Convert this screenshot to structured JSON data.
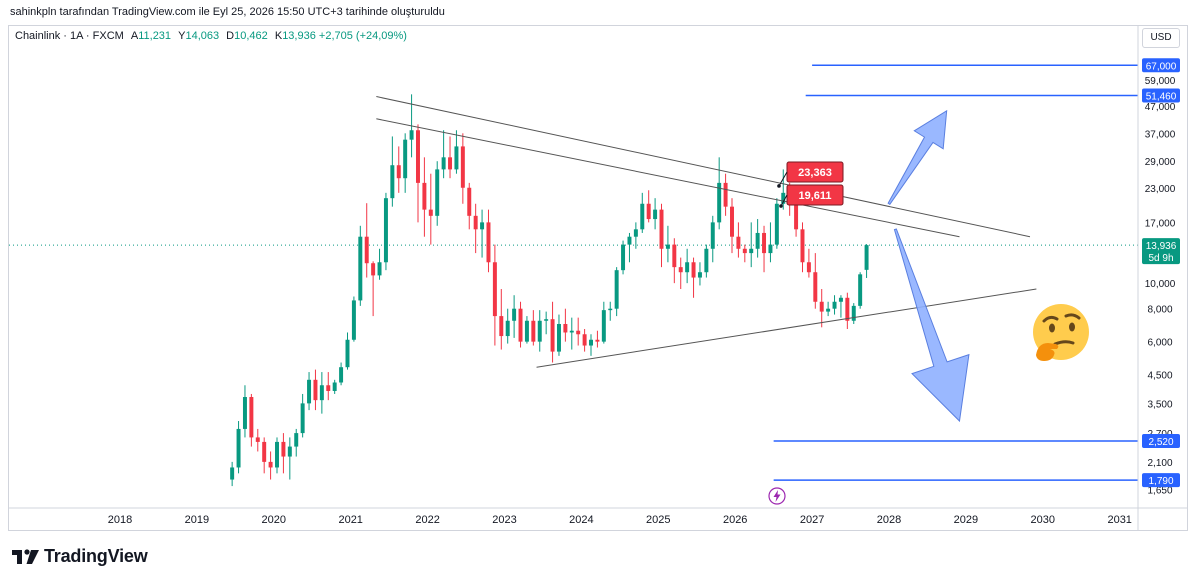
{
  "header": {
    "attribution": "sahinkpln tarafından TradingView.com ile Eyl 25, 2026 15:50 UTC+3 tarihinde oluşturuldu"
  },
  "legend": {
    "symbol": "Chainlink · 1A · FXCM",
    "open_key": "A",
    "open": "11,231",
    "high_key": "Y",
    "high": "14,063",
    "low_key": "D",
    "low": "10,462",
    "close_key": "K",
    "close": "13,936",
    "change": "+2,705 (+24,09%)"
  },
  "currency": "USD",
  "footer": {
    "brand": "TradingView"
  },
  "colors": {
    "up": "#089981",
    "down": "#f23645",
    "level_line": "#2962ff",
    "arrow_fill": "#8fb0ff",
    "arrow_stroke": "#5a7fe0",
    "trendline": "#555555",
    "callout": "#f23645"
  },
  "chart_data": {
    "type": "candlestick",
    "title": "",
    "xlabel": "",
    "ylabel": "",
    "y_scale": "log",
    "ylim": [
      1.6,
      73
    ],
    "x_tick_labels": [
      "2018",
      "2019",
      "2020",
      "2021",
      "2022",
      "2023",
      "2024",
      "2025",
      "2026",
      "2027",
      "2028",
      "2029",
      "2030",
      "2031"
    ],
    "y_tick_labels": [
      "59,000",
      "47,000",
      "37,000",
      "29,000",
      "23,000",
      "17,000",
      "10,000",
      "8,000",
      "6,000",
      "4,500",
      "3,500",
      "2,700",
      "2,100",
      "1,650"
    ],
    "y_tick_values": [
      59,
      47,
      37,
      29,
      23,
      17,
      10,
      8,
      6,
      4.5,
      3.5,
      2.7,
      2.1,
      1.65
    ],
    "price_levels": [
      {
        "label": "67,000",
        "value": 67,
        "from": "2027-01"
      },
      {
        "label": "51,460",
        "value": 51.46,
        "from": "2026-12"
      },
      {
        "label": "2,520",
        "value": 2.52,
        "from": "2026-07"
      },
      {
        "label": "1,790",
        "value": 1.79,
        "from": "2026-07"
      }
    ],
    "current_price": {
      "label": "13,936",
      "value": 13.936,
      "countdown": "5d 9h"
    },
    "callouts": [
      {
        "label": "23,363",
        "value": 23.363
      },
      {
        "label": "19,611",
        "value": 19.611
      }
    ],
    "trendlines": [
      {
        "from": [
          "2021-05",
          51
        ],
        "to": [
          "2029-11",
          15
        ]
      },
      {
        "from": [
          "2021-05",
          42
        ],
        "to": [
          "2028-12",
          15
        ]
      },
      {
        "from": [
          "2023-06",
          4.8
        ],
        "to": [
          "2029-12",
          9.5
        ]
      }
    ],
    "arrows": [
      {
        "direction": "up",
        "from": [
          "2028-01",
          20
        ],
        "to": [
          "2028-10",
          45
        ]
      },
      {
        "direction": "down",
        "from": [
          "2028-02",
          16
        ],
        "to": [
          "2028-12",
          3.0
        ]
      }
    ],
    "candles": {
      "start": "2019-06",
      "interval": "1 month",
      "ohlc": [
        [
          1.8,
          2.1,
          1.7,
          2.0
        ],
        [
          2.0,
          3.0,
          1.9,
          2.8
        ],
        [
          2.8,
          4.1,
          2.6,
          3.7
        ],
        [
          3.7,
          3.8,
          2.4,
          2.6
        ],
        [
          2.6,
          2.8,
          2.3,
          2.5
        ],
        [
          2.5,
          2.6,
          1.9,
          2.1
        ],
        [
          2.1,
          2.3,
          1.8,
          2.0
        ],
        [
          2.0,
          2.6,
          1.9,
          2.5
        ],
        [
          2.5,
          2.7,
          1.9,
          2.2
        ],
        [
          2.2,
          2.6,
          1.8,
          2.4
        ],
        [
          2.4,
          2.8,
          2.2,
          2.7
        ],
        [
          2.7,
          3.8,
          2.6,
          3.5
        ],
        [
          3.5,
          4.6,
          3.3,
          4.3
        ],
        [
          4.3,
          4.7,
          3.3,
          3.6
        ],
        [
          3.6,
          4.6,
          3.2,
          4.1
        ],
        [
          4.1,
          4.6,
          3.6,
          3.9
        ],
        [
          3.9,
          4.3,
          3.8,
          4.2
        ],
        [
          4.2,
          5.0,
          4.1,
          4.8
        ],
        [
          4.8,
          6.5,
          4.7,
          6.1
        ],
        [
          6.1,
          8.9,
          6.0,
          8.6
        ],
        [
          8.6,
          16.5,
          8.2,
          15.0
        ],
        [
          15.0,
          20.1,
          10.5,
          11.9
        ],
        [
          11.9,
          12.1,
          7.5,
          10.7
        ],
        [
          10.7,
          13.5,
          10.3,
          12.0
        ],
        [
          12.0,
          22.0,
          11.2,
          21.0
        ],
        [
          21.0,
          36.0,
          19.5,
          28.0
        ],
        [
          28.0,
          33.0,
          22.0,
          25.0
        ],
        [
          25.0,
          37.0,
          22.0,
          35.0
        ],
        [
          35.0,
          52.0,
          30.0,
          38.0
        ],
        [
          38.0,
          40.0,
          17.0,
          24.0
        ],
        [
          24.0,
          30.0,
          15.0,
          19.0
        ],
        [
          19.0,
          26.0,
          14.0,
          18.0
        ],
        [
          18.0,
          29.0,
          16.5,
          27.0
        ],
        [
          27.0,
          38.0,
          25.0,
          30.0
        ],
        [
          30.0,
          36.0,
          25.0,
          27.0
        ],
        [
          27.0,
          38.0,
          26.0,
          33.0
        ],
        [
          33.0,
          37.0,
          20.0,
          23.0
        ],
        [
          23.0,
          24.0,
          16.0,
          18.0
        ],
        [
          18.0,
          20.0,
          13.0,
          16.0
        ],
        [
          16.0,
          19.0,
          12.5,
          17.0
        ],
        [
          17.0,
          19.0,
          11.0,
          12.0
        ],
        [
          12.0,
          14.0,
          5.8,
          7.5
        ],
        [
          7.5,
          9.5,
          5.6,
          6.3
        ],
        [
          6.3,
          8.0,
          5.9,
          7.2
        ],
        [
          7.2,
          9.0,
          6.2,
          8.0
        ],
        [
          8.0,
          8.5,
          5.7,
          6.0
        ],
        [
          6.0,
          7.5,
          5.9,
          7.2
        ],
        [
          7.2,
          7.9,
          5.8,
          6.0
        ],
        [
          6.0,
          7.9,
          5.5,
          7.2
        ],
        [
          7.2,
          7.8,
          6.4,
          7.3
        ],
        [
          7.3,
          8.5,
          5.0,
          5.5
        ],
        [
          5.5,
          7.6,
          5.3,
          7.0
        ],
        [
          7.0,
          8.0,
          6.0,
          6.5
        ],
        [
          6.5,
          7.4,
          5.6,
          6.6
        ],
        [
          6.6,
          7.4,
          5.8,
          6.4
        ],
        [
          6.4,
          6.7,
          5.5,
          5.8
        ],
        [
          5.8,
          6.4,
          5.3,
          6.1
        ],
        [
          6.1,
          6.6,
          5.7,
          6.0
        ],
        [
          6.0,
          8.5,
          5.9,
          7.9
        ],
        [
          7.9,
          8.5,
          7.2,
          8.0
        ],
        [
          8.0,
          11.5,
          7.5,
          11.2
        ],
        [
          11.2,
          14.5,
          10.8,
          14.0
        ],
        [
          14.0,
          15.5,
          12.0,
          15.0
        ],
        [
          15.0,
          17.0,
          13.5,
          16.0
        ],
        [
          16.0,
          22.0,
          15.5,
          20.0
        ],
        [
          20.0,
          22.5,
          17.0,
          17.5
        ],
        [
          17.5,
          21.0,
          16.0,
          19.0
        ],
        [
          19.0,
          20.0,
          11.5,
          13.5
        ],
        [
          13.5,
          16.5,
          12.0,
          14.0
        ],
        [
          14.0,
          14.8,
          10.0,
          11.5
        ],
        [
          11.5,
          12.5,
          9.5,
          11.0
        ],
        [
          11.0,
          13.5,
          10.0,
          12.0
        ],
        [
          12.0,
          12.5,
          8.8,
          10.5
        ],
        [
          10.5,
          12.0,
          9.8,
          11.0
        ],
        [
          11.0,
          14.0,
          10.5,
          13.5
        ],
        [
          13.5,
          18.0,
          12.0,
          17.0
        ],
        [
          17.0,
          30.0,
          16.0,
          24.0
        ],
        [
          24.0,
          26.0,
          18.0,
          19.5
        ],
        [
          19.5,
          21.0,
          13.0,
          15.0
        ],
        [
          15.0,
          17.0,
          12.5,
          13.5
        ],
        [
          13.5,
          14.0,
          12.0,
          13.0
        ],
        [
          13.0,
          17.0,
          11.5,
          13.5
        ],
        [
          13.5,
          17.5,
          12.5,
          15.5
        ],
        [
          15.5,
          16.5,
          11.0,
          13.0
        ],
        [
          13.0,
          17.0,
          12.0,
          14.0
        ],
        [
          14.0,
          21.0,
          13.5,
          20.0
        ],
        [
          20.0,
          27.0,
          19.0,
          22.0
        ],
        [
          22.0,
          24.0,
          18.0,
          20.0
        ],
        [
          20.0,
          22.0,
          15.0,
          16.0
        ],
        [
          16.0,
          17.0,
          11.0,
          12.0
        ],
        [
          12.0,
          13.5,
          10.5,
          11.0
        ],
        [
          11.0,
          13.0,
          8.0,
          8.5
        ],
        [
          8.5,
          9.5,
          6.8,
          7.8
        ],
        [
          7.8,
          8.5,
          7.5,
          8.0
        ],
        [
          8.0,
          9.0,
          7.6,
          8.5
        ],
        [
          8.5,
          9.0,
          7.4,
          8.8
        ],
        [
          8.8,
          9.2,
          6.7,
          7.2
        ],
        [
          7.2,
          8.4,
          7.0,
          8.2
        ],
        [
          8.2,
          11.0,
          8.0,
          10.8
        ],
        [
          11.231,
          14.063,
          10.462,
          13.936
        ]
      ]
    }
  }
}
